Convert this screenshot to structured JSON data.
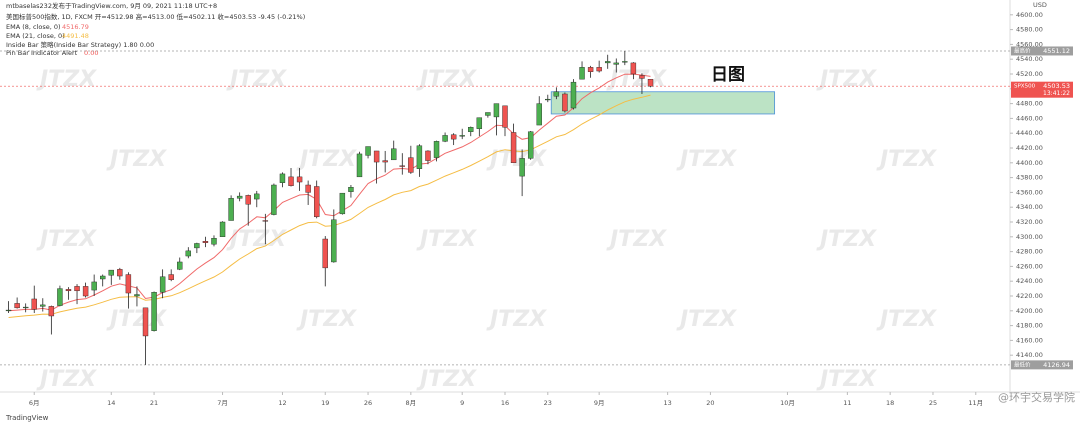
{
  "chart_data": {
    "type": "candlestick",
    "header": {
      "publisher": "mtbaselas232发布于TradingView.com, 9月 09, 2021 11:18 UTC+8",
      "symbol_line": "美国标普500指数, 1D, FXCM  开=4512.98 高=4513.00 低=4502.11 收=4503.53 -9.45 (-0.21%)",
      "inside_bar": "Inside Bar 策略(Inside Bar Strategy)  1.80  0.00",
      "pin_bar": "Pin Bar Indicator Alert",
      "pin_bar_value": "0.00"
    },
    "annotation": "日图",
    "watermark": "JTZX",
    "footer_left": "TradingView",
    "footer_right": "@环宇交易学院",
    "currency": "USD",
    "candles": {
      "up_color": "#4caf50",
      "down_color": "#ef5350",
      "open": [
        4201,
        4210,
        4204,
        4216,
        4206,
        4206,
        4207,
        4229,
        4233,
        4233,
        4228,
        4243,
        4248,
        4256,
        4249,
        4220,
        4204,
        4173,
        4225,
        4249,
        4256,
        4274,
        4285,
        4294,
        4290,
        4300,
        4322,
        4352,
        4356,
        4351,
        4322,
        4330,
        4373,
        4381,
        4381,
        4370,
        4368,
        4297,
        4266,
        4331,
        4361,
        4381,
        4410,
        4416,
        4403,
        4404,
        4396,
        4407,
        4392,
        4416,
        4407,
        4429,
        4438,
        4436,
        4442,
        4446,
        4464,
        4462,
        4477,
        4441,
        4382,
        4406,
        4451,
        4485,
        4490,
        4493,
        4474,
        4513,
        4529,
        4529,
        4535,
        4533,
        4537,
        4535,
        4518,
        4512.98
      ],
      "high": [
        4213,
        4218,
        4210,
        4234,
        4217,
        4207,
        4234,
        4232,
        4236,
        4238,
        4249,
        4249,
        4255,
        4258,
        4252,
        4233,
        4204,
        4226,
        4256,
        4256,
        4272,
        4286,
        4292,
        4300,
        4302,
        4321,
        4356,
        4360,
        4357,
        4362,
        4331,
        4372,
        4387,
        4393,
        4393,
        4376,
        4376,
        4301,
        4337,
        4359,
        4370,
        4415,
        4422,
        4416,
        4416,
        4430,
        4413,
        4423,
        4425,
        4417,
        4430,
        4441,
        4440,
        4446,
        4449,
        4461,
        4468,
        4480,
        4477,
        4453,
        4418,
        4443,
        4490,
        4492,
        4502,
        4495,
        4513,
        4537,
        4531,
        4538,
        4546,
        4541,
        4551.12,
        4536,
        4521,
        4513.0
      ],
      "low": [
        4197,
        4203,
        4198,
        4197,
        4199,
        4168,
        4206,
        4215,
        4209,
        4218,
        4220,
        4233,
        4235,
        4242,
        4203,
        4206,
        4126.94,
        4172,
        4217,
        4240,
        4255,
        4271,
        4278,
        4286,
        4287,
        4300,
        4322,
        4348,
        4315,
        4340,
        4290,
        4329,
        4367,
        4368,
        4362,
        4343,
        4325,
        4233,
        4265,
        4330,
        4353,
        4381,
        4406,
        4372,
        4387,
        4404,
        4384,
        4385,
        4381,
        4398,
        4402,
        4428,
        4424,
        4432,
        4436,
        4436,
        4461,
        4437,
        4436,
        4400,
        4355,
        4404,
        4451,
        4482,
        4486,
        4468,
        4472,
        4513,
        4515,
        4522,
        4527,
        4522,
        4532,
        4513,
        4493,
        4502.11
      ],
      "close": [
        4201,
        4204,
        4205,
        4202,
        4208,
        4193,
        4230,
        4227,
        4227,
        4220,
        4239,
        4247,
        4255,
        4247,
        4224,
        4222,
        4166,
        4225,
        4246,
        4242,
        4266,
        4281,
        4291,
        4292,
        4298,
        4320,
        4352,
        4355,
        4344,
        4358,
        4321,
        4370,
        4385,
        4369,
        4374,
        4360,
        4327,
        4258,
        4323,
        4359,
        4367,
        4412,
        4422,
        4401,
        4401,
        4419,
        4395,
        4387,
        4423,
        4403,
        4429,
        4437,
        4432,
        4437,
        4448,
        4461,
        4468,
        4480,
        4448,
        4400,
        4406,
        4442,
        4480,
        4486,
        4496,
        4470,
        4509,
        4529,
        4523,
        4524,
        4537,
        4535,
        4537,
        4520,
        4514,
        4503.53
      ]
    },
    "series": [
      {
        "name": "EMA (8, close, 0)",
        "color": "#f06a6a",
        "values": [
          4200.2,
          4201.0,
          4201.9,
          4201.9,
          4203.3,
          4201.0,
          4207.4,
          4211.7,
          4215.1,
          4216.2,
          4221.3,
          4227.0,
          4233.2,
          4236.3,
          4233.6,
          4231.0,
          4216.6,
          4218.5,
          4224.6,
          4228.5,
          4236.8,
          4246.6,
          4256.5,
          4264.4,
          4271.9,
          4282.6,
          4298.0,
          4310.7,
          4318.1,
          4327.0,
          4325.7,
          4335.5,
          4346.5,
          4351.5,
          4356.5,
          4357.3,
          4350.5,
          4330.1,
          4328.5,
          4335.3,
          4342.3,
          4357.5,
          4372.0,
          4378.4,
          4383.4,
          4391.5,
          4392.3,
          4391.1,
          4398.2,
          4399.3,
          4405.9,
          4412.8,
          4417.1,
          4421.5,
          4427.4,
          4434.9,
          4442.3,
          4450.7,
          4450.1,
          4439.0,
          4431.7,
          4434.0,
          4444.2,
          4453.5,
          4463.0,
          4464.6,
          4474.5,
          4486.6,
          4494.7,
          4501.2,
          4509.1,
          4514.8,
          4519.7,
          4519.8,
          4518.5,
          4516.79
        ]
      },
      {
        "name": "EMA (21, close, 0)",
        "color": "#f5bd45",
        "values": [
          4191.0,
          4192.2,
          4193.4,
          4194.2,
          4195.5,
          4195.3,
          4198.5,
          4201.1,
          4203.5,
          4205.0,
          4208.1,
          4211.6,
          4215.5,
          4218.3,
          4218.8,
          4219.1,
          4214.3,
          4215.3,
          4218.1,
          4220.3,
          4224.5,
          4229.7,
          4235.3,
          4240.5,
          4245.7,
          4252.4,
          4261.5,
          4270.0,
          4276.7,
          4284.1,
          4287.5,
          4295.0,
          4303.2,
          4309.2,
          4315.1,
          4319.2,
          4319.9,
          4314.3,
          4315.1,
          4319.1,
          4323.5,
          4331.5,
          4339.7,
          4345.3,
          4350.4,
          4356.6,
          4360.1,
          4362.5,
          4368.0,
          4371.2,
          4376.5,
          4382.0,
          4386.5,
          4391.1,
          4396.3,
          4402.2,
          4408.2,
          4414.7,
          4417.7,
          4416.1,
          4415.2,
          4417.6,
          4423.3,
          4429.0,
          4435.1,
          4438.3,
          4444.7,
          4452.4,
          4458.8,
          4464.7,
          4471.3,
          4477.1,
          4482.5,
          4485.9,
          4488.5,
          4491.48
        ]
      }
    ],
    "zone": {
      "x_from": 63.4,
      "x_to": 89.5,
      "top": 4496,
      "bottom": 4466,
      "color": "#8fd19e"
    },
    "price_labels": [
      {
        "label": "最高价",
        "value": 4551.12,
        "color": "#9e9e9e"
      },
      {
        "label": "SPX500",
        "value": 4503.53,
        "countdown": "13:41:22",
        "color": "#ef5350"
      },
      {
        "label": "最低价",
        "value": 4126.94,
        "color": "#9e9e9e"
      }
    ],
    "xlim": [
      -1,
      117
    ],
    "xticks": [
      {
        "value": 3,
        "label": "6月"
      },
      {
        "value": 12,
        "label": "14"
      },
      {
        "value": 17,
        "label": "21"
      },
      {
        "value": 25,
        "label": "7月"
      },
      {
        "value": 32,
        "label": "12"
      },
      {
        "value": 37,
        "label": "19"
      },
      {
        "value": 42,
        "label": "26"
      },
      {
        "value": 47,
        "label": "8月"
      },
      {
        "value": 53,
        "label": "9"
      },
      {
        "value": 58,
        "label": "16"
      },
      {
        "value": 63,
        "label": "23"
      },
      {
        "value": 69,
        "label": "9月"
      },
      {
        "value": 77,
        "label": "13"
      },
      {
        "value": 82,
        "label": "20"
      },
      {
        "value": 91,
        "label": "10月"
      },
      {
        "value": 98,
        "label": "11"
      },
      {
        "value": 103,
        "label": "18"
      },
      {
        "value": 108,
        "label": "25"
      },
      {
        "value": 113,
        "label": "11月"
      }
    ],
    "ylim": [
      4120,
      4620
    ],
    "yticks": [
      {
        "value": 4140,
        "label": "4140.00"
      },
      {
        "value": 4160,
        "label": "4160.00"
      },
      {
        "value": 4180,
        "label": "4180.00"
      },
      {
        "value": 4200,
        "label": "4200.00"
      },
      {
        "value": 4220,
        "label": "4220.00"
      },
      {
        "value": 4240,
        "label": "4240.00"
      },
      {
        "value": 4260,
        "label": "4260.00"
      },
      {
        "value": 4280,
        "label": "4280.00"
      },
      {
        "value": 4300,
        "label": "4300.00"
      },
      {
        "value": 4320,
        "label": "4320.00"
      },
      {
        "value": 4340,
        "label": "4340.00"
      },
      {
        "value": 4360,
        "label": "4360.00"
      },
      {
        "value": 4380,
        "label": "4380.00"
      },
      {
        "value": 4400,
        "label": "4400.00"
      },
      {
        "value": 4420,
        "label": "4420.00"
      },
      {
        "value": 4440,
        "label": "4440.00"
      },
      {
        "value": 4460,
        "label": "4460.00"
      },
      {
        "value": 4480,
        "label": "4480.00"
      },
      {
        "value": 4500,
        "label": "4500.00"
      },
      {
        "value": 4520,
        "label": "4520.00"
      },
      {
        "value": 4540,
        "label": "4540.00"
      },
      {
        "value": 4560,
        "label": "4560.00"
      },
      {
        "value": 4580,
        "label": "4580.00"
      },
      {
        "value": 4600,
        "label": "4600.00"
      }
    ],
    "grid": false
  }
}
